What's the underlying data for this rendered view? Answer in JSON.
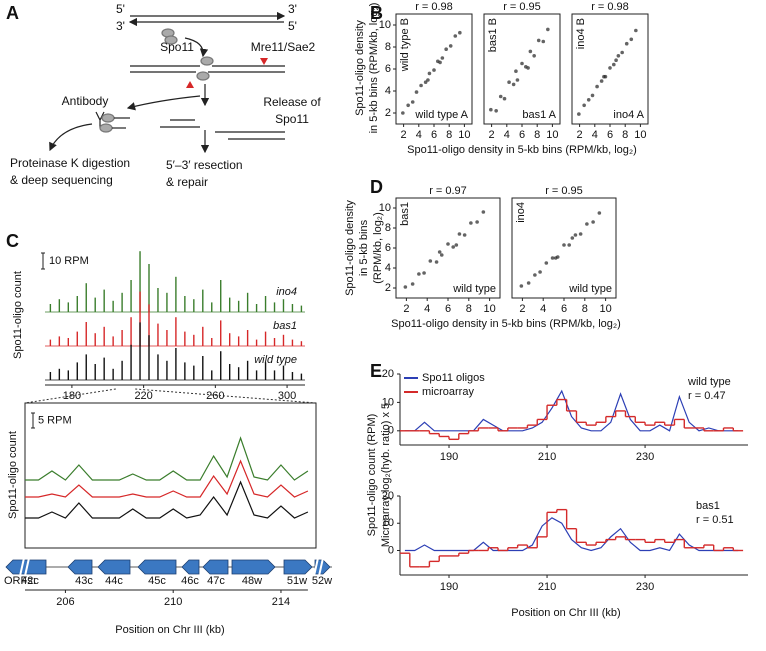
{
  "panel_labels": [
    "A",
    "B",
    "C",
    "D",
    "E"
  ],
  "diagram": {
    "ends": [
      "5'",
      "3'",
      "3'",
      "5'"
    ],
    "labels": [
      "Spo11",
      "Mre11/Sae2",
      "Antibody",
      "Release of",
      "Spo11",
      "Proteinase K digestion",
      "& deep sequencing",
      "5′–3′ resection",
      "& repair"
    ]
  },
  "chart_data": [
    {
      "type": "scatter",
      "annotation": "r = 0.98",
      "y_label": "wild type B",
      "x_label": "wild type A",
      "color": "#222",
      "x": [
        1.9,
        2.6,
        3.2,
        3.7,
        4.3,
        4.9,
        5.4,
        6.0,
        6.5,
        7.1,
        7.6,
        8.2,
        8.8,
        9.4,
        5.2,
        6.8
      ],
      "y": [
        2.0,
        2.7,
        3.0,
        3.9,
        4.5,
        4.8,
        5.6,
        5.9,
        6.7,
        7.0,
        7.8,
        8.1,
        9.0,
        9.3,
        5.0,
        6.6
      ],
      "xlim": [
        1,
        11
      ],
      "ylim": [
        1,
        11
      ],
      "xticks": [
        2,
        4,
        6,
        8,
        10
      ],
      "yticks": [
        2,
        4,
        6,
        8,
        10
      ],
      "x_title": "Spo11-oligo density in 5-kb bins (RPM/kb, log₂)",
      "y_title": [
        "Spo11-oligo density",
        "in 5-kb bins (RPM/kb, log₂)"
      ]
    },
    {
      "type": "scatter",
      "annotation": "r = 0.95",
      "y_label": "bas1 B",
      "x_label": "bas1 A",
      "color": "#222",
      "x": [
        1.9,
        2.6,
        3.2,
        3.7,
        4.3,
        4.9,
        5.4,
        6.0,
        6.5,
        7.1,
        7.6,
        8.2,
        8.8,
        9.4,
        5.2,
        6.8
      ],
      "y": [
        2.3,
        2.2,
        3.5,
        3.3,
        4.8,
        4.6,
        5.0,
        6.5,
        6.2,
        7.6,
        7.2,
        8.6,
        8.5,
        9.6,
        5.8,
        6.1
      ],
      "xlim": [
        1,
        11
      ],
      "ylim": [
        1,
        11
      ],
      "xticks": [
        2,
        4,
        6,
        8,
        10
      ]
    },
    {
      "type": "scatter",
      "annotation": "r = 0.98",
      "y_label": "ino4 B",
      "x_label": "ino4 A",
      "color": "#222",
      "x": [
        1.9,
        2.6,
        3.2,
        3.7,
        4.3,
        4.9,
        5.4,
        6.0,
        6.5,
        7.1,
        7.6,
        8.2,
        8.8,
        9.4,
        5.2,
        6.8
      ],
      "y": [
        1.9,
        2.7,
        3.2,
        3.6,
        4.4,
        4.9,
        5.3,
        6.1,
        6.4,
        7.2,
        7.5,
        8.3,
        8.7,
        9.5,
        5.3,
        6.8
      ],
      "xlim": [
        1,
        11
      ],
      "ylim": [
        1,
        11
      ],
      "xticks": [
        2,
        4,
        6,
        8,
        10
      ]
    },
    {
      "type": "scatter",
      "annotation": "r = 0.97",
      "y_label": "bas1",
      "x_label": "wild type",
      "color": "#222",
      "x": [
        1.9,
        2.6,
        3.2,
        3.7,
        4.3,
        4.9,
        5.4,
        6.0,
        6.5,
        7.1,
        7.6,
        8.2,
        8.8,
        9.4,
        5.2,
        6.8
      ],
      "y": [
        2.1,
        2.4,
        3.4,
        3.5,
        4.7,
        4.6,
        5.3,
        6.4,
        6.1,
        7.4,
        7.3,
        8.5,
        8.6,
        9.6,
        5.6,
        6.3
      ],
      "xlim": [
        1,
        11
      ],
      "ylim": [
        1,
        11
      ],
      "xticks": [
        2,
        4,
        6,
        8,
        10
      ],
      "yticks": [
        2,
        4,
        6,
        8,
        10
      ],
      "x_title": "Spo11-oligo density in 5-kb bins (RPM/kb, log₂)",
      "y_title": [
        "Spo11-oligo density",
        "in 5-kb bins",
        "(RPM/kb, log₂)"
      ]
    },
    {
      "type": "scatter",
      "annotation": "r = 0.95",
      "y_label": "ino4",
      "x_label": "wild type",
      "color": "#222",
      "x": [
        1.9,
        2.6,
        3.2,
        3.7,
        4.3,
        4.9,
        5.4,
        6.0,
        6.5,
        7.1,
        7.6,
        8.2,
        8.8,
        9.4,
        5.2,
        6.8
      ],
      "y": [
        2.2,
        2.5,
        3.3,
        3.6,
        4.5,
        5.0,
        5.1,
        6.3,
        6.3,
        7.3,
        7.4,
        8.4,
        8.6,
        9.5,
        5.0,
        7.0
      ],
      "xlim": [
        1,
        11
      ],
      "ylim": [
        1,
        11
      ],
      "xticks": [
        2,
        4,
        6,
        8,
        10
      ]
    },
    {
      "type": "bar",
      "y_title": "Spo11-oligo count",
      "x": [
        168,
        173,
        178,
        183,
        188,
        193,
        198,
        203,
        208,
        213,
        218,
        223,
        228,
        233,
        238,
        243,
        248,
        253,
        258,
        263,
        268,
        273,
        278,
        283,
        288,
        293,
        298,
        303,
        308
      ],
      "series": [
        {
          "name": "ino4",
          "color": "#3a7d2c",
          "values": [
            5,
            8,
            6,
            10,
            18,
            9,
            14,
            7,
            12,
            20,
            38,
            30,
            15,
            12,
            22,
            10,
            8,
            14,
            6,
            20,
            9,
            7,
            12,
            5,
            10,
            6,
            8,
            5,
            4
          ]
        },
        {
          "name": "bas1",
          "color": "#d62728",
          "values": [
            4,
            6,
            5,
            9,
            15,
            8,
            12,
            6,
            10,
            18,
            34,
            26,
            14,
            10,
            18,
            9,
            7,
            12,
            5,
            16,
            8,
            6,
            10,
            4,
            9,
            5,
            7,
            4,
            3
          ]
        },
        {
          "name": "wild type",
          "color": "#111111",
          "values": [
            5,
            7,
            6,
            11,
            16,
            10,
            14,
            7,
            12,
            22,
            36,
            28,
            16,
            12,
            20,
            11,
            9,
            15,
            6,
            18,
            10,
            8,
            12,
            6,
            11,
            6,
            9,
            5,
            4
          ]
        }
      ],
      "xlim": [
        165,
        310
      ],
      "xticks": [
        180,
        220,
        260,
        300
      ],
      "yticks": [
        {
          "value": 10,
          "label": "10 RPM"
        }
      ]
    },
    {
      "type": "line",
      "y_title": "Spo11-oligo count",
      "x_title": "Position on Chr III (kb)",
      "orfs": {
        "title": "ORFs:",
        "labels": [
          "42c",
          "43c",
          "44c",
          "45c",
          "46c",
          "47c",
          "48w",
          "51w",
          "52w"
        ]
      },
      "x": [
        204.5,
        205,
        205.5,
        206,
        206.5,
        207,
        207.5,
        208,
        208.5,
        209,
        209.5,
        210,
        210.5,
        211,
        211.5,
        212,
        212.5,
        213,
        213.5,
        214,
        214.5,
        215
      ],
      "series": [
        {
          "color": "#3a7d2c",
          "values": [
            1,
            1,
            4,
            1,
            6,
            1,
            1,
            1,
            3,
            1,
            1,
            4,
            1,
            1,
            9,
            2,
            15,
            2,
            1,
            6,
            1,
            4
          ]
        },
        {
          "color": "#d62728",
          "values": [
            1,
            1,
            2,
            1,
            5,
            1,
            1,
            1,
            2,
            1,
            1,
            3,
            1,
            1,
            8,
            2,
            13,
            2,
            1,
            5,
            1,
            3
          ]
        },
        {
          "color": "#111111",
          "values": [
            0,
            0,
            2,
            0,
            5,
            0,
            0,
            0,
            3,
            0,
            0,
            3,
            0,
            1,
            7,
            1,
            12,
            1,
            0,
            4,
            0,
            2
          ]
        }
      ],
      "xlim": [
        204.5,
        215.3
      ],
      "xticks": [
        206,
        210,
        214
      ],
      "yticks": [
        {
          "value": 5,
          "label": "5 RPM"
        }
      ]
    },
    {
      "type": "line",
      "label": "wild type",
      "annotation": "r = 0.47",
      "y_title": [
        "Spo11-oligo count (RPM)",
        "Microarray log₂(hyb. ratio) x 5"
      ],
      "x": [
        181,
        183,
        185,
        187,
        189,
        191,
        193,
        195,
        197,
        199,
        201,
        203,
        205,
        207,
        209,
        211,
        213,
        215,
        217,
        219,
        221,
        223,
        225,
        227,
        229,
        231,
        233,
        235,
        237,
        239,
        241,
        243,
        245,
        247,
        249
      ],
      "series": [
        {
          "name": "Spo11 oligos",
          "color": "#2c3fb5",
          "values": [
            0,
            0,
            3,
            0,
            0,
            0,
            0,
            0,
            4,
            2,
            0,
            0,
            0,
            1,
            3,
            8,
            14,
            5,
            1,
            0,
            0,
            3,
            13,
            4,
            0,
            0,
            2,
            0,
            12,
            3,
            0,
            1,
            0,
            0,
            0
          ]
        },
        {
          "name": "microarray",
          "color": "#d42a2a",
          "step": true,
          "values": [
            0,
            0,
            0,
            -1,
            -2,
            -3,
            -1,
            0,
            1,
            1,
            0,
            1,
            1,
            2,
            4,
            9,
            11,
            7,
            3,
            2,
            3,
            5,
            7,
            5,
            3,
            2,
            3,
            2,
            4,
            1,
            1,
            0,
            0,
            1,
            0
          ]
        }
      ],
      "xlim": [
        180,
        251
      ],
      "ylim": [
        -5,
        20
      ],
      "xticks": [
        190,
        210,
        230
      ],
      "yticks": [
        0,
        10,
        20
      ]
    },
    {
      "type": "line",
      "label": "bas1",
      "annotation": "r = 0.51",
      "x_title": "Position on Chr III (kb)",
      "x": [
        181,
        183,
        185,
        187,
        189,
        191,
        193,
        195,
        197,
        199,
        201,
        203,
        205,
        207,
        209,
        211,
        213,
        215,
        217,
        219,
        221,
        223,
        225,
        227,
        229,
        231,
        233,
        235,
        237,
        239,
        241,
        243,
        245,
        247,
        249
      ],
      "series": [
        {
          "color": "#2c3fb5",
          "values": [
            0,
            0,
            2,
            0,
            0,
            0,
            0,
            0,
            3,
            0,
            0,
            0,
            0,
            2,
            9,
            12,
            10,
            4,
            1,
            0,
            1,
            5,
            8,
            3,
            0,
            0,
            1,
            0,
            6,
            2,
            0,
            0,
            0,
            0,
            0
          ]
        },
        {
          "color": "#d42a2a",
          "step": true,
          "values": [
            -1,
            -6,
            -6,
            -4,
            -2,
            -2,
            -1,
            0,
            0,
            1,
            0,
            1,
            2,
            1,
            5,
            14,
            15,
            8,
            3,
            2,
            3,
            4,
            5,
            4,
            4,
            3,
            4,
            3,
            4,
            1,
            1,
            2,
            0,
            1,
            0
          ]
        }
      ],
      "xlim": [
        180,
        251
      ],
      "ylim": [
        -9,
        20
      ],
      "xticks": [
        190,
        210,
        230
      ],
      "yticks": [
        0,
        10,
        20
      ]
    }
  ]
}
